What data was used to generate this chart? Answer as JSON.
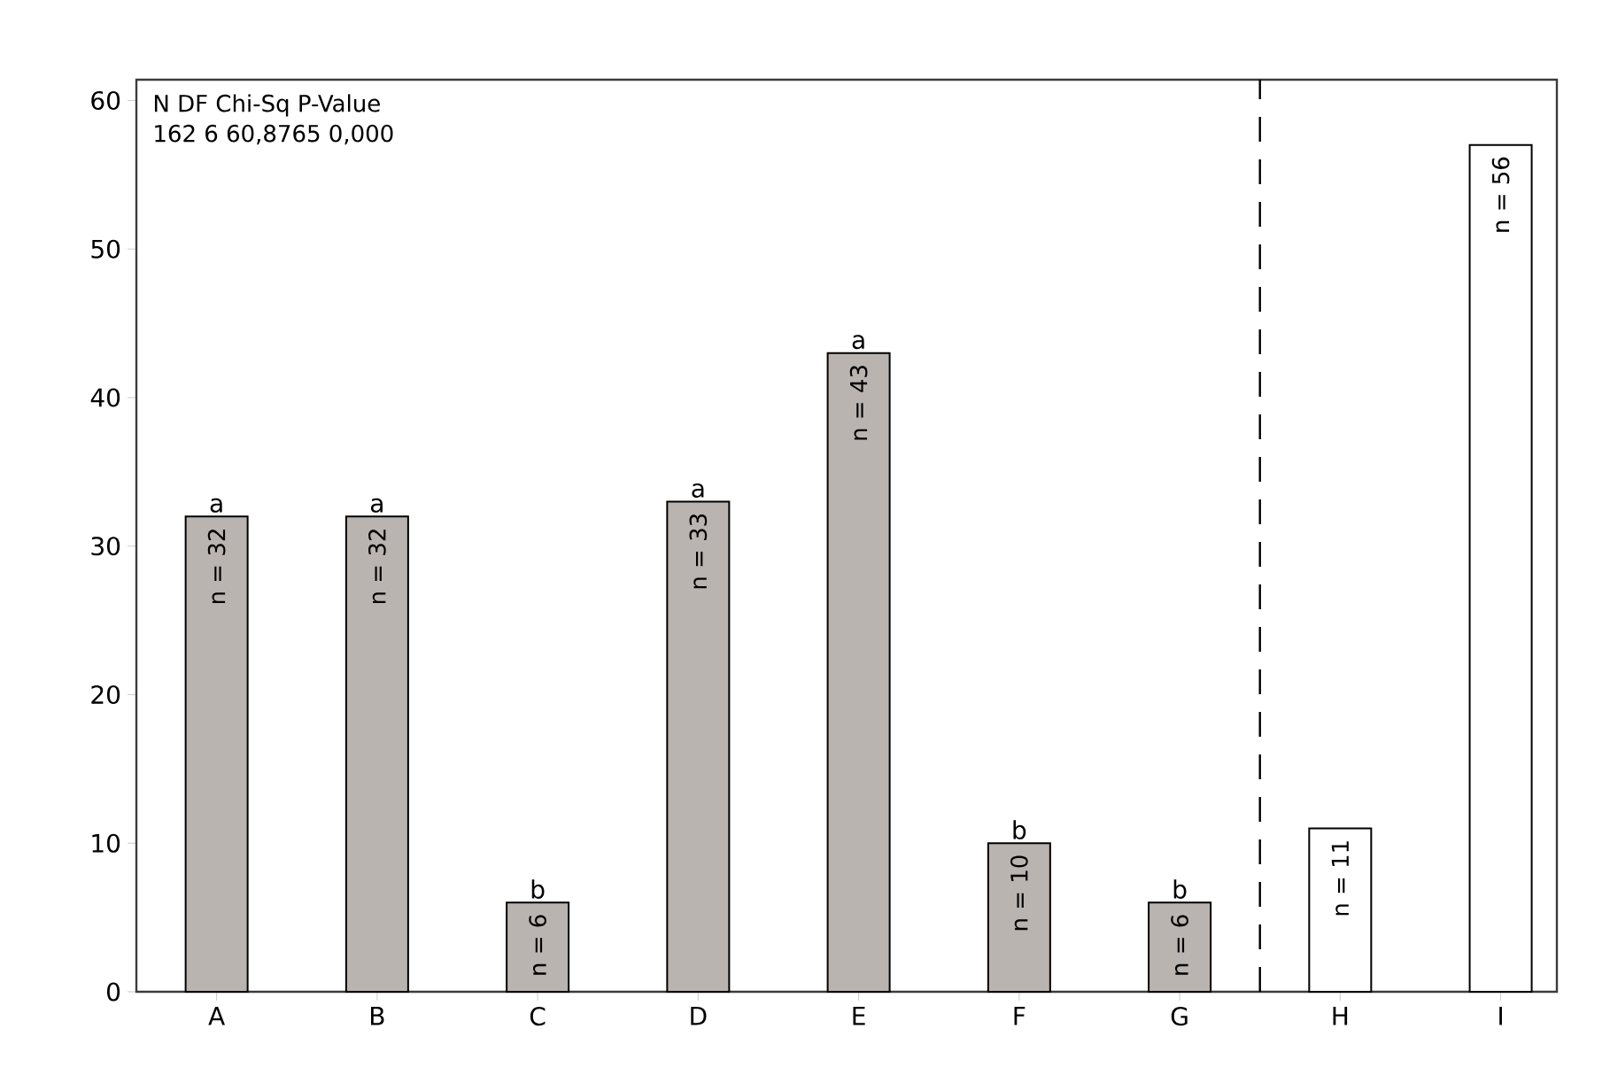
{
  "chart_data": {
    "type": "bar",
    "categories": [
      "A",
      "B",
      "C",
      "D",
      "E",
      "F",
      "G",
      "H",
      "I"
    ],
    "values": [
      32,
      32,
      6,
      33,
      43,
      10,
      6,
      11,
      57
    ],
    "colors": [
      "#bab4b0",
      "#bab4b0",
      "#bab4b0",
      "#bab4b0",
      "#bab4b0",
      "#bab4b0",
      "#bab4b0",
      "#ffffff",
      "#ffffff"
    ],
    "ylim": [
      0,
      61.4
    ],
    "yticks": [
      0,
      10,
      20,
      30,
      40,
      50,
      60
    ],
    "annotations": [
      "N  DF  Chi-Sq  P-Value",
      "162  6  60,8765  0,000",
      {
        "text": "a",
        "x": "A",
        "y": 32
      },
      {
        "text": "a",
        "x": "B",
        "y": 32
      },
      {
        "text": "b",
        "x": "C",
        "y": 6
      },
      {
        "text": "a",
        "x": "D",
        "y": 33
      },
      {
        "text": "a",
        "x": "E",
        "y": 43
      },
      {
        "text": "b",
        "x": "F",
        "y": 10
      },
      {
        "text": "b",
        "x": "G",
        "y": 6
      },
      {
        "text": "n = 32",
        "x": "A",
        "y": 32
      },
      {
        "text": "n = 32",
        "x": "B",
        "y": 32
      },
      {
        "text": "n = 6",
        "x": "C",
        "y": 6
      },
      {
        "text": "n = 33",
        "x": "D",
        "y": 33
      },
      {
        "text": "n = 43",
        "x": "E",
        "y": 43
      },
      {
        "text": "n = 10",
        "x": "F",
        "y": 10
      },
      {
        "text": "n = 6",
        "x": "G",
        "y": 6
      },
      {
        "text": "n = 11",
        "x": "H",
        "y": 11
      },
      {
        "text": "n = 56",
        "x": "I",
        "y": 57
      }
    ]
  }
}
